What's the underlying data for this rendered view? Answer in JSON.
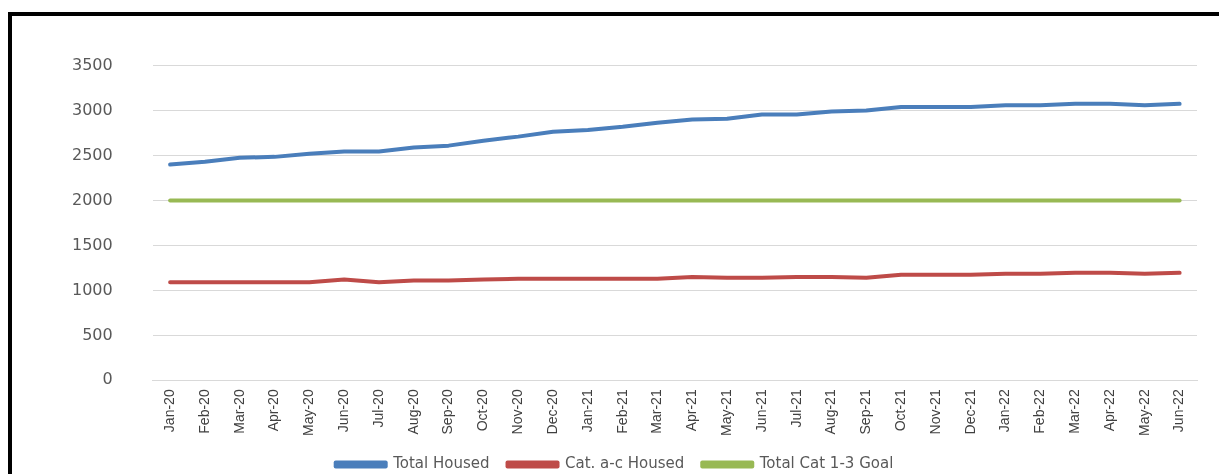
{
  "chart_data": {
    "type": "line",
    "categories": [
      "Jan-20",
      "Feb-20",
      "Mar-20",
      "Apr-20",
      "May-20",
      "Jun-20",
      "Jul-20",
      "Aug-20",
      "Sep-20",
      "Oct-20",
      "Nov-20",
      "Dec-20",
      "Jan-21",
      "Feb-21",
      "Mar-21",
      "Apr-21",
      "May-21",
      "Jun-21",
      "Jul-21",
      "Aug-21",
      "Sep-21",
      "Oct-21",
      "Nov-21",
      "Dec-21",
      "Jan-22",
      "Feb-22",
      "Mar-22",
      "Apr-22",
      "May-22",
      "Jun-22"
    ],
    "series": [
      {
        "name": "Total Housed",
        "color": "#4a7ebb",
        "values": [
          2400,
          2430,
          2475,
          2485,
          2520,
          2545,
          2545,
          2590,
          2610,
          2665,
          2710,
          2765,
          2785,
          2820,
          2865,
          2900,
          2910,
          2955,
          2955,
          2990,
          3000,
          3040,
          3040,
          3040,
          3060,
          3060,
          3075,
          3075,
          3060,
          3075
        ]
      },
      {
        "name": "Cat. a-c Housed",
        "color": "#be4b48",
        "values": [
          1090,
          1090,
          1090,
          1090,
          1090,
          1120,
          1090,
          1110,
          1110,
          1120,
          1130,
          1130,
          1130,
          1130,
          1130,
          1150,
          1140,
          1140,
          1150,
          1150,
          1140,
          1175,
          1175,
          1175,
          1185,
          1185,
          1195,
          1195,
          1185,
          1195
        ]
      },
      {
        "name": "Total Cat 1-3 Goal",
        "color": "#98b954",
        "values": [
          2000,
          2000,
          2000,
          2000,
          2000,
          2000,
          2000,
          2000,
          2000,
          2000,
          2000,
          2000,
          2000,
          2000,
          2000,
          2000,
          2000,
          2000,
          2000,
          2000,
          2000,
          2000,
          2000,
          2000,
          2000,
          2000,
          2000,
          2000,
          2000,
          2000
        ]
      }
    ],
    "ylim": [
      0,
      3500
    ],
    "yticks": [
      0,
      500,
      1000,
      1500,
      2000,
      2500,
      3000,
      3500
    ],
    "grid": "y",
    "legend": "bottom",
    "marker": "none",
    "line_style": "solid"
  }
}
